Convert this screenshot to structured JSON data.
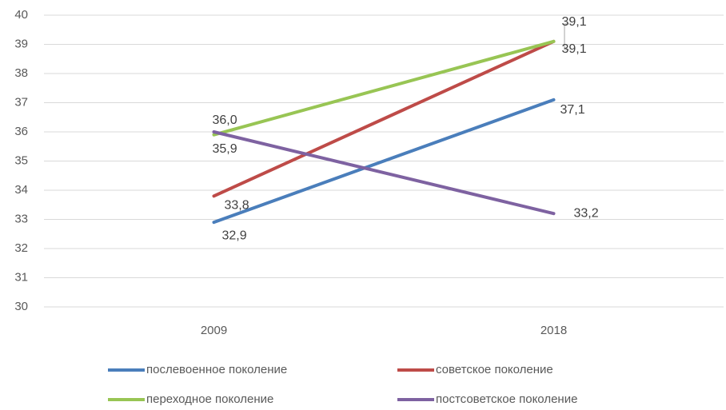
{
  "chart_data": {
    "type": "line",
    "categories": [
      "2009",
      "2018"
    ],
    "series": [
      {
        "name": "послевоенное поколение",
        "color": "#4a7ebb",
        "values": [
          32.9,
          37.1
        ],
        "value_labels": [
          "32,9",
          "37,1"
        ]
      },
      {
        "name": "советское поколение",
        "color": "#be4b48",
        "values": [
          33.8,
          39.1
        ],
        "value_labels": [
          "33,8",
          "39,1"
        ]
      },
      {
        "name": "переходное поколение",
        "color": "#98c554",
        "values": [
          35.9,
          39.1
        ],
        "value_labels": [
          "35,9",
          "39,1"
        ]
      },
      {
        "name": "постсоветское поколение",
        "color": "#7e62a1",
        "values": [
          36.0,
          33.2
        ],
        "value_labels": [
          "36,0",
          "33,2"
        ]
      }
    ],
    "ylim": [
      30,
      40
    ],
    "yticks": [
      30,
      31,
      32,
      33,
      34,
      35,
      36,
      37,
      38,
      39,
      40
    ],
    "grid": true
  }
}
